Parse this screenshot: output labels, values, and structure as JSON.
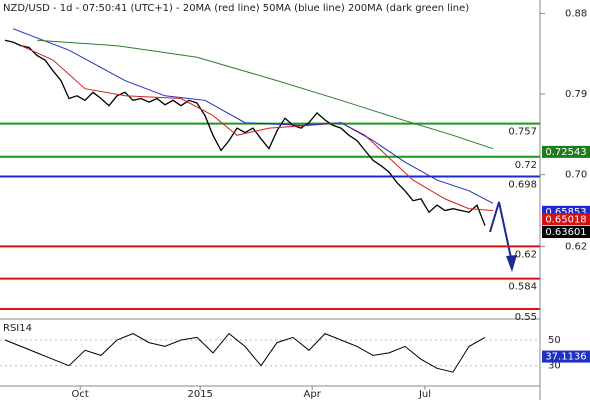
{
  "chart_data": [
    {
      "type": "line",
      "title": "NZD/USD - 1d - 07:50:41 (UTC+1) - 20MA (red line) 50MA (blue line) 200MA (dark green line)",
      "xlim": [
        -0.625,
        66.875
      ],
      "xticks": [
        {
          "value": 9.4,
          "label": "Oct"
        },
        {
          "value": 24.4,
          "label": "2015"
        },
        {
          "value": 38.4,
          "label": "Apr"
        },
        {
          "value": 52.5,
          "label": "Jul"
        }
      ],
      "ylim": [
        0.54,
        0.895
      ],
      "yticks": [
        0.88,
        0.79,
        {
          "value": 0.7,
          "label": "0.70"
        },
        0.62
      ],
      "series": [
        {
          "color": "#000000",
          "x": [
            0,
            1,
            2,
            3,
            4,
            5,
            6,
            7,
            8,
            9,
            10,
            11,
            12,
            13,
            14,
            15,
            16,
            17,
            18,
            19,
            20,
            21,
            22,
            23,
            24,
            25,
            26,
            27,
            28,
            29,
            30,
            31,
            32,
            33,
            34,
            35,
            36,
            37,
            38,
            39,
            40,
            41,
            42,
            43,
            44,
            45,
            46,
            47,
            48,
            49,
            50,
            51,
            52,
            53,
            54,
            55,
            56,
            57,
            58,
            59,
            60
          ],
          "values": [
            0.85,
            0.848,
            0.844,
            0.842,
            0.833,
            0.828,
            0.816,
            0.805,
            0.785,
            0.788,
            0.783,
            0.792,
            0.785,
            0.777,
            0.788,
            0.792,
            0.783,
            0.785,
            0.781,
            0.785,
            0.778,
            0.783,
            0.777,
            0.783,
            0.78,
            0.766,
            0.744,
            0.727,
            0.738,
            0.752,
            0.747,
            0.752,
            0.74,
            0.729,
            0.749,
            0.763,
            0.755,
            0.752,
            0.758,
            0.769,
            0.761,
            0.755,
            0.752,
            0.744,
            0.738,
            0.727,
            0.716,
            0.71,
            0.703,
            0.691,
            0.682,
            0.671,
            0.673,
            0.658,
            0.666,
            0.66,
            0.662,
            0.66,
            0.658,
            0.666,
            0.643
          ]
        },
        {
          "color": "#d42020",
          "x": [
            2,
            6,
            10,
            15,
            22,
            26,
            29,
            33,
            38,
            42,
            45,
            48,
            51,
            55,
            58,
            61
          ],
          "values": [
            0.844,
            0.828,
            0.796,
            0.788,
            0.785,
            0.766,
            0.744,
            0.752,
            0.755,
            0.758,
            0.744,
            0.719,
            0.694,
            0.673,
            0.662,
            0.66
          ]
        },
        {
          "color": "#2030c0",
          "x": [
            1,
            8,
            15,
            20,
            25,
            30,
            37,
            42,
            46,
            50,
            54,
            58,
            61
          ],
          "values": [
            0.863,
            0.839,
            0.805,
            0.788,
            0.783,
            0.758,
            0.755,
            0.758,
            0.738,
            0.714,
            0.694,
            0.682,
            0.668
          ]
        },
        {
          "color": "#2e7d32",
          "x": [
            4,
            14,
            24,
            34,
            42,
            49,
            56,
            61
          ],
          "values": [
            0.85,
            0.844,
            0.831,
            0.805,
            0.783,
            0.763,
            0.744,
            0.729
          ]
        }
      ],
      "levels": [
        {
          "value": 0.757,
          "color": "#1a9a1a"
        },
        {
          "value": 0.72,
          "color": "#1a9a1a"
        },
        {
          "value": 0.698,
          "color": "#1a2ad0"
        },
        {
          "value": 0.62,
          "color": "#e01010"
        },
        {
          "value": 0.584,
          "color": "#e01010"
        },
        {
          "value": 0.55,
          "color": "#e01010"
        }
      ],
      "tags": [
        {
          "value": 0.72543,
          "color": "#1b7d1b"
        },
        {
          "value": 0.65853,
          "color": "#1a2ad0"
        },
        {
          "value": 0.65018,
          "color": "#d41010"
        },
        {
          "value": 0.63601,
          "color": "#000000"
        }
      ]
    },
    {
      "type": "line",
      "title": "RSI14",
      "xlim": [
        -0.625,
        66.875
      ],
      "ylim": [
        15,
        64
      ],
      "yticks": [
        50,
        30
      ],
      "x": [
        0,
        2,
        4,
        6,
        8,
        10,
        12,
        14,
        16,
        18,
        20,
        22,
        24,
        26,
        28,
        30,
        32,
        34,
        36,
        38,
        40,
        42,
        44,
        46,
        48,
        50,
        52,
        54,
        56,
        58,
        60
      ],
      "values": [
        50,
        45,
        40,
        35,
        30,
        42,
        38,
        50,
        55,
        48,
        45,
        50,
        52,
        40,
        55,
        45,
        30,
        48,
        52,
        42,
        55,
        50,
        45,
        38,
        40,
        45,
        35,
        28,
        25,
        45,
        52
      ],
      "color": "#000000",
      "tag": {
        "value": 37.1136,
        "color": "#2030c0"
      }
    }
  ]
}
